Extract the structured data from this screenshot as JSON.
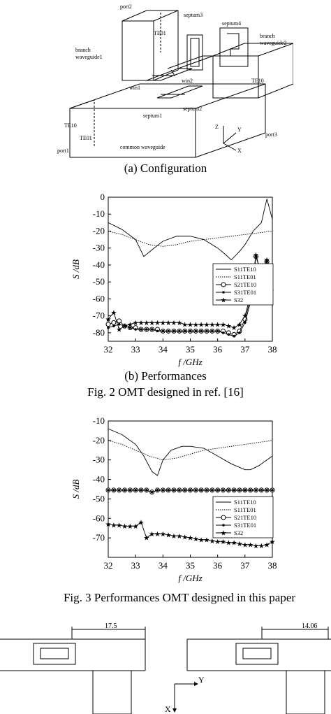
{
  "figure_a": {
    "caption": "(a) Configuration",
    "labels": {
      "port2": "port2",
      "te01_top": "TE01",
      "septum3": "septum3",
      "septum4": "septum4",
      "branch_wg1": "branch\nwaveguide1",
      "branch_wg2": "branch\nwaveguide2",
      "te10_right": "TE10",
      "win1": "win1",
      "win2": "win2",
      "te10_left": "TE10",
      "septum1": "septum1",
      "septum2": "septum2",
      "te01_left": "TE01",
      "port3": "port3",
      "common_wg": "common waveguide",
      "port1": "port1",
      "axis_z": "Z",
      "axis_y": "Y",
      "axis_x": "X"
    }
  },
  "figure_b_caption": "(b) Performances",
  "fig2_caption": "Fig. 2 OMT designed in ref. [16]",
  "fig3_caption": "Fig. 3 Performances OMT designed in this paper",
  "chart_data": [
    {
      "type": "line",
      "xlabel": "f /GHz",
      "ylabel": "S /dB",
      "xlim": [
        32,
        38
      ],
      "ylim": [
        -85,
        0
      ],
      "xticks": [
        32,
        33,
        34,
        35,
        36,
        37,
        38
      ],
      "yticks": [
        0,
        -10,
        -20,
        -30,
        -40,
        -50,
        -60,
        -70,
        -80
      ],
      "legend_position": "center-right",
      "series": [
        {
          "name": "S11TE10",
          "style": "solid",
          "marker": "none",
          "x": [
            32,
            32.5,
            33,
            33.3,
            33.6,
            34,
            34.5,
            35,
            35.5,
            36,
            36.3,
            36.5,
            36.8,
            37,
            37.3,
            37.6,
            37.8,
            38
          ],
          "y": [
            -15,
            -19,
            -25,
            -35,
            -31,
            -26,
            -23,
            -23,
            -25,
            -30,
            -34,
            -37,
            -32,
            -28,
            -20,
            -15,
            -1,
            -13
          ]
        },
        {
          "name": "S11TE01",
          "style": "dotted",
          "marker": "none",
          "x": [
            32,
            32.5,
            33,
            33.5,
            34,
            34.5,
            35,
            35.5,
            36,
            36.5,
            37,
            37.5,
            38
          ],
          "y": [
            -20,
            -22,
            -25,
            -28,
            -29,
            -28,
            -26,
            -25,
            -24,
            -23,
            -22,
            -21,
            -20
          ]
        },
        {
          "name": "S21TE10",
          "style": "solid",
          "marker": "open-circle",
          "x": [
            32,
            32.2,
            32.4,
            32.6,
            32.8,
            33,
            33.2,
            33.4,
            33.6,
            33.8,
            34,
            34.2,
            34.4,
            34.6,
            34.8,
            35,
            35.2,
            35.4,
            35.6,
            35.8,
            36,
            36.2,
            36.4,
            36.6,
            36.8,
            37,
            37.2,
            37.4,
            37.6,
            37.8,
            37.95
          ],
          "y": [
            -75,
            -74,
            -73,
            -76,
            -77,
            -77,
            -78,
            -78,
            -78,
            -78,
            -79,
            -79,
            -79,
            -79,
            -79,
            -79,
            -79,
            -79,
            -79,
            -79,
            -79,
            -79,
            -80,
            -81,
            -79,
            -72,
            -60,
            -35,
            -45,
            -38,
            -55
          ]
        },
        {
          "name": "S31TE01",
          "style": "solid",
          "marker": "dot",
          "x": [
            32,
            32.2,
            32.4,
            32.6,
            32.8,
            33,
            33.2,
            33.4,
            33.6,
            33.8,
            34,
            34.2,
            34.4,
            34.6,
            34.8,
            35,
            35.2,
            35.4,
            35.6,
            35.8,
            36,
            36.2,
            36.4,
            36.6,
            36.8,
            37,
            37.2,
            37.4,
            37.6,
            37.8,
            37.95
          ],
          "y": [
            -77,
            -76,
            -75,
            -76,
            -77,
            -78,
            -78,
            -78,
            -78,
            -79,
            -79,
            -79,
            -79,
            -79,
            -79,
            -79,
            -79,
            -79,
            -79,
            -79,
            -79,
            -80,
            -81,
            -82,
            -80,
            -74,
            -62,
            -35,
            -45,
            -38,
            -57
          ]
        },
        {
          "name": "S32",
          "style": "solid",
          "marker": "star",
          "x": [
            32,
            32.2,
            32.4,
            32.6,
            32.8,
            33,
            33.2,
            33.4,
            33.6,
            33.8,
            34,
            34.2,
            34.4,
            34.6,
            34.8,
            35,
            35.2,
            35.4,
            35.6,
            35.8,
            36,
            36.2,
            36.4,
            36.6,
            36.8,
            37,
            37.2,
            37.4,
            37.6,
            37.8,
            37.95
          ],
          "y": [
            -72,
            -68,
            -78,
            -76,
            -75,
            -74,
            -74,
            -74,
            -74,
            -74,
            -74,
            -74,
            -74,
            -74,
            -75,
            -75,
            -75,
            -75,
            -75,
            -75,
            -75,
            -75,
            -76,
            -77,
            -75,
            -70,
            -58,
            -34,
            -46,
            -37,
            -55
          ]
        }
      ]
    },
    {
      "type": "line",
      "xlabel": "f /GHz",
      "ylabel": "S /dB",
      "xlim": [
        32,
        38
      ],
      "ylim": [
        -80,
        -10
      ],
      "xticks": [
        32,
        33,
        34,
        35,
        36,
        37,
        38
      ],
      "yticks": [
        -10,
        -20,
        -30,
        -40,
        -50,
        -60,
        -70
      ],
      "legend_position": "bottom-right",
      "series": [
        {
          "name": "S11TE10",
          "style": "solid",
          "marker": "none",
          "x": [
            32,
            32.5,
            33,
            33.3,
            33.6,
            33.8,
            34,
            34.3,
            34.7,
            35,
            35.5,
            36,
            36.5,
            37,
            37.2,
            37.5,
            38
          ],
          "y": [
            -14,
            -17,
            -22,
            -28,
            -36,
            -38,
            -30,
            -25,
            -23,
            -23,
            -24,
            -28,
            -32,
            -35,
            -35,
            -33,
            -28
          ]
        },
        {
          "name": "S11TE01",
          "style": "dotted",
          "marker": "none",
          "x": [
            32,
            32.5,
            33,
            33.5,
            34,
            34.5,
            35,
            35.5,
            36,
            36.5,
            37,
            37.5,
            38
          ],
          "y": [
            -20,
            -22,
            -25,
            -28,
            -30,
            -29,
            -27,
            -25,
            -24,
            -23,
            -22,
            -21,
            -20
          ]
        },
        {
          "name": "S21TE10",
          "style": "solid",
          "marker": "open-circle",
          "x": [
            32,
            32.2,
            32.4,
            32.6,
            32.8,
            33,
            33.2,
            33.4,
            33.6,
            33.8,
            34,
            34.2,
            34.4,
            34.6,
            34.8,
            35,
            35.2,
            35.4,
            35.6,
            35.8,
            36,
            36.2,
            36.4,
            36.6,
            36.8,
            37,
            37.2,
            37.4,
            37.6,
            37.8,
            38
          ],
          "y": [
            -45.5,
            -45.5,
            -45.5,
            -45.5,
            -45.5,
            -45.5,
            -45.5,
            -45.5,
            -46.5,
            -45.5,
            -45.5,
            -45.5,
            -45.5,
            -45.5,
            -45.5,
            -45.5,
            -45.5,
            -45.5,
            -45.5,
            -45.5,
            -45.5,
            -45.5,
            -45.5,
            -45.5,
            -45.5,
            -45.5,
            -45.5,
            -45.5,
            -45.5,
            -45.5,
            -45.5
          ]
        },
        {
          "name": "S31TE01",
          "style": "solid",
          "marker": "dot",
          "x": [
            32,
            32.2,
            32.4,
            32.6,
            32.8,
            33,
            33.2,
            33.4,
            33.6,
            33.8,
            34,
            34.2,
            34.4,
            34.6,
            34.8,
            35,
            35.2,
            35.4,
            35.6,
            35.8,
            36,
            36.2,
            36.4,
            36.6,
            36.8,
            37,
            37.2,
            37.4,
            37.6,
            37.8,
            38
          ],
          "y": [
            -45.5,
            -45.5,
            -45.5,
            -45.5,
            -45.5,
            -45.5,
            -45.5,
            -45.5,
            -46.5,
            -45.5,
            -45.5,
            -45.5,
            -45.5,
            -45.5,
            -45.5,
            -45.5,
            -45.5,
            -45.5,
            -45.5,
            -45.5,
            -45.5,
            -45.5,
            -45.5,
            -45.5,
            -45.5,
            -45.5,
            -45.5,
            -45.5,
            -45.5,
            -45.5,
            -45.5
          ]
        },
        {
          "name": "S32",
          "style": "solid",
          "marker": "star",
          "x": [
            32,
            32.2,
            32.4,
            32.6,
            32.8,
            33,
            33.2,
            33.4,
            33.6,
            33.8,
            34,
            34.2,
            34.4,
            34.6,
            34.8,
            35,
            35.2,
            35.4,
            35.6,
            35.8,
            36,
            36.2,
            36.4,
            36.6,
            36.8,
            37,
            37.2,
            37.4,
            37.6,
            37.8,
            38
          ],
          "y": [
            -63,
            -63.5,
            -63.5,
            -64,
            -64,
            -64,
            -62,
            -70,
            -68,
            -68,
            -68,
            -68.5,
            -69,
            -69,
            -69.5,
            -70,
            -70.5,
            -71,
            -71,
            -71.5,
            -72,
            -72,
            -72.5,
            -72.5,
            -73,
            -73.5,
            -73.5,
            -74,
            -74,
            -73.5,
            -72
          ]
        }
      ]
    }
  ],
  "figure_bottom": {
    "dim_left": "17.5",
    "dim_right": "14.06",
    "axis_y": "Y",
    "axis_x": "X"
  }
}
